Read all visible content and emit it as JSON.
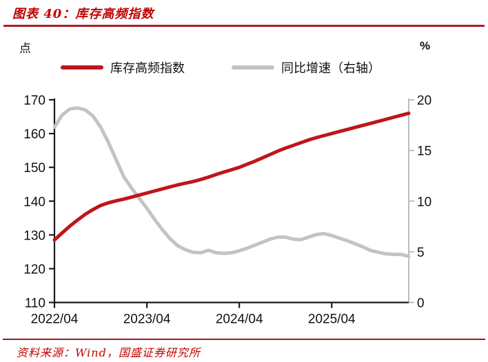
{
  "header": {
    "title": "图表 40：库存高频指数"
  },
  "axes_units": {
    "left": "点",
    "right": "%"
  },
  "legend": [
    {
      "label": "库存高频指数",
      "color": "#bf151b"
    },
    {
      "label": "同比增速（右轴）",
      "color": "#c3c3c3"
    }
  ],
  "footer": {
    "source": "资料来源：Wind，国盛证券研究所"
  },
  "colors": {
    "title_red": "#c00000",
    "rule_red": "#ab1f26",
    "series_red": "#bf151b",
    "series_gray": "#c3c3c3",
    "axis_black": "#1a1a1a",
    "axis_gray": "#bdbdbd",
    "tick_label": "#111111"
  },
  "chart_data": {
    "type": "line",
    "title": "库存高频指数",
    "x_start_label": "2022/04",
    "x_tick_labels": [
      "2022/04",
      "2023/04",
      "2024/04",
      "2025/04"
    ],
    "x_tick_month_index": [
      0,
      12,
      24,
      36
    ],
    "months_span": 46,
    "left_axis": {
      "label": "点",
      "min": 110,
      "max": 170,
      "ticks": [
        110,
        120,
        130,
        140,
        150,
        160,
        170
      ]
    },
    "right_axis": {
      "label": "%",
      "min": 0,
      "max": 20,
      "ticks": [
        0,
        5,
        10,
        15,
        20
      ]
    },
    "grid": false,
    "legend_position": "top",
    "series": [
      {
        "name": "库存高频指数",
        "axis": "left",
        "color": "#bf151b",
        "values": [
          128.5,
          130.6,
          132.6,
          134.4,
          136.1,
          137.5,
          138.7,
          139.5,
          140.1,
          140.6,
          141.2,
          141.8,
          142.4,
          143.0,
          143.6,
          144.2,
          144.8,
          145.3,
          145.8,
          146.4,
          147.1,
          147.9,
          148.6,
          149.3,
          150.0,
          150.9,
          151.8,
          152.8,
          153.8,
          154.8,
          155.7,
          156.5,
          157.3,
          158.1,
          158.8,
          159.4,
          160.0,
          160.6,
          161.2,
          161.8,
          162.4,
          163.0,
          163.6,
          164.2,
          164.8,
          165.4,
          166.0
        ]
      },
      {
        "name": "同比增速（右轴）",
        "axis": "right",
        "color": "#c3c3c3",
        "values": [
          17.3,
          18.5,
          19.1,
          19.2,
          19.0,
          18.4,
          17.3,
          15.8,
          14.1,
          12.4,
          11.3,
          10.3,
          9.3,
          8.2,
          7.2,
          6.3,
          5.6,
          5.2,
          4.95,
          4.9,
          5.15,
          4.9,
          4.85,
          4.9,
          5.1,
          5.35,
          5.65,
          5.95,
          6.25,
          6.45,
          6.45,
          6.25,
          6.2,
          6.45,
          6.7,
          6.8,
          6.6,
          6.35,
          6.1,
          5.8,
          5.5,
          5.15,
          4.95,
          4.8,
          4.75,
          4.75,
          4.55
        ]
      }
    ]
  }
}
